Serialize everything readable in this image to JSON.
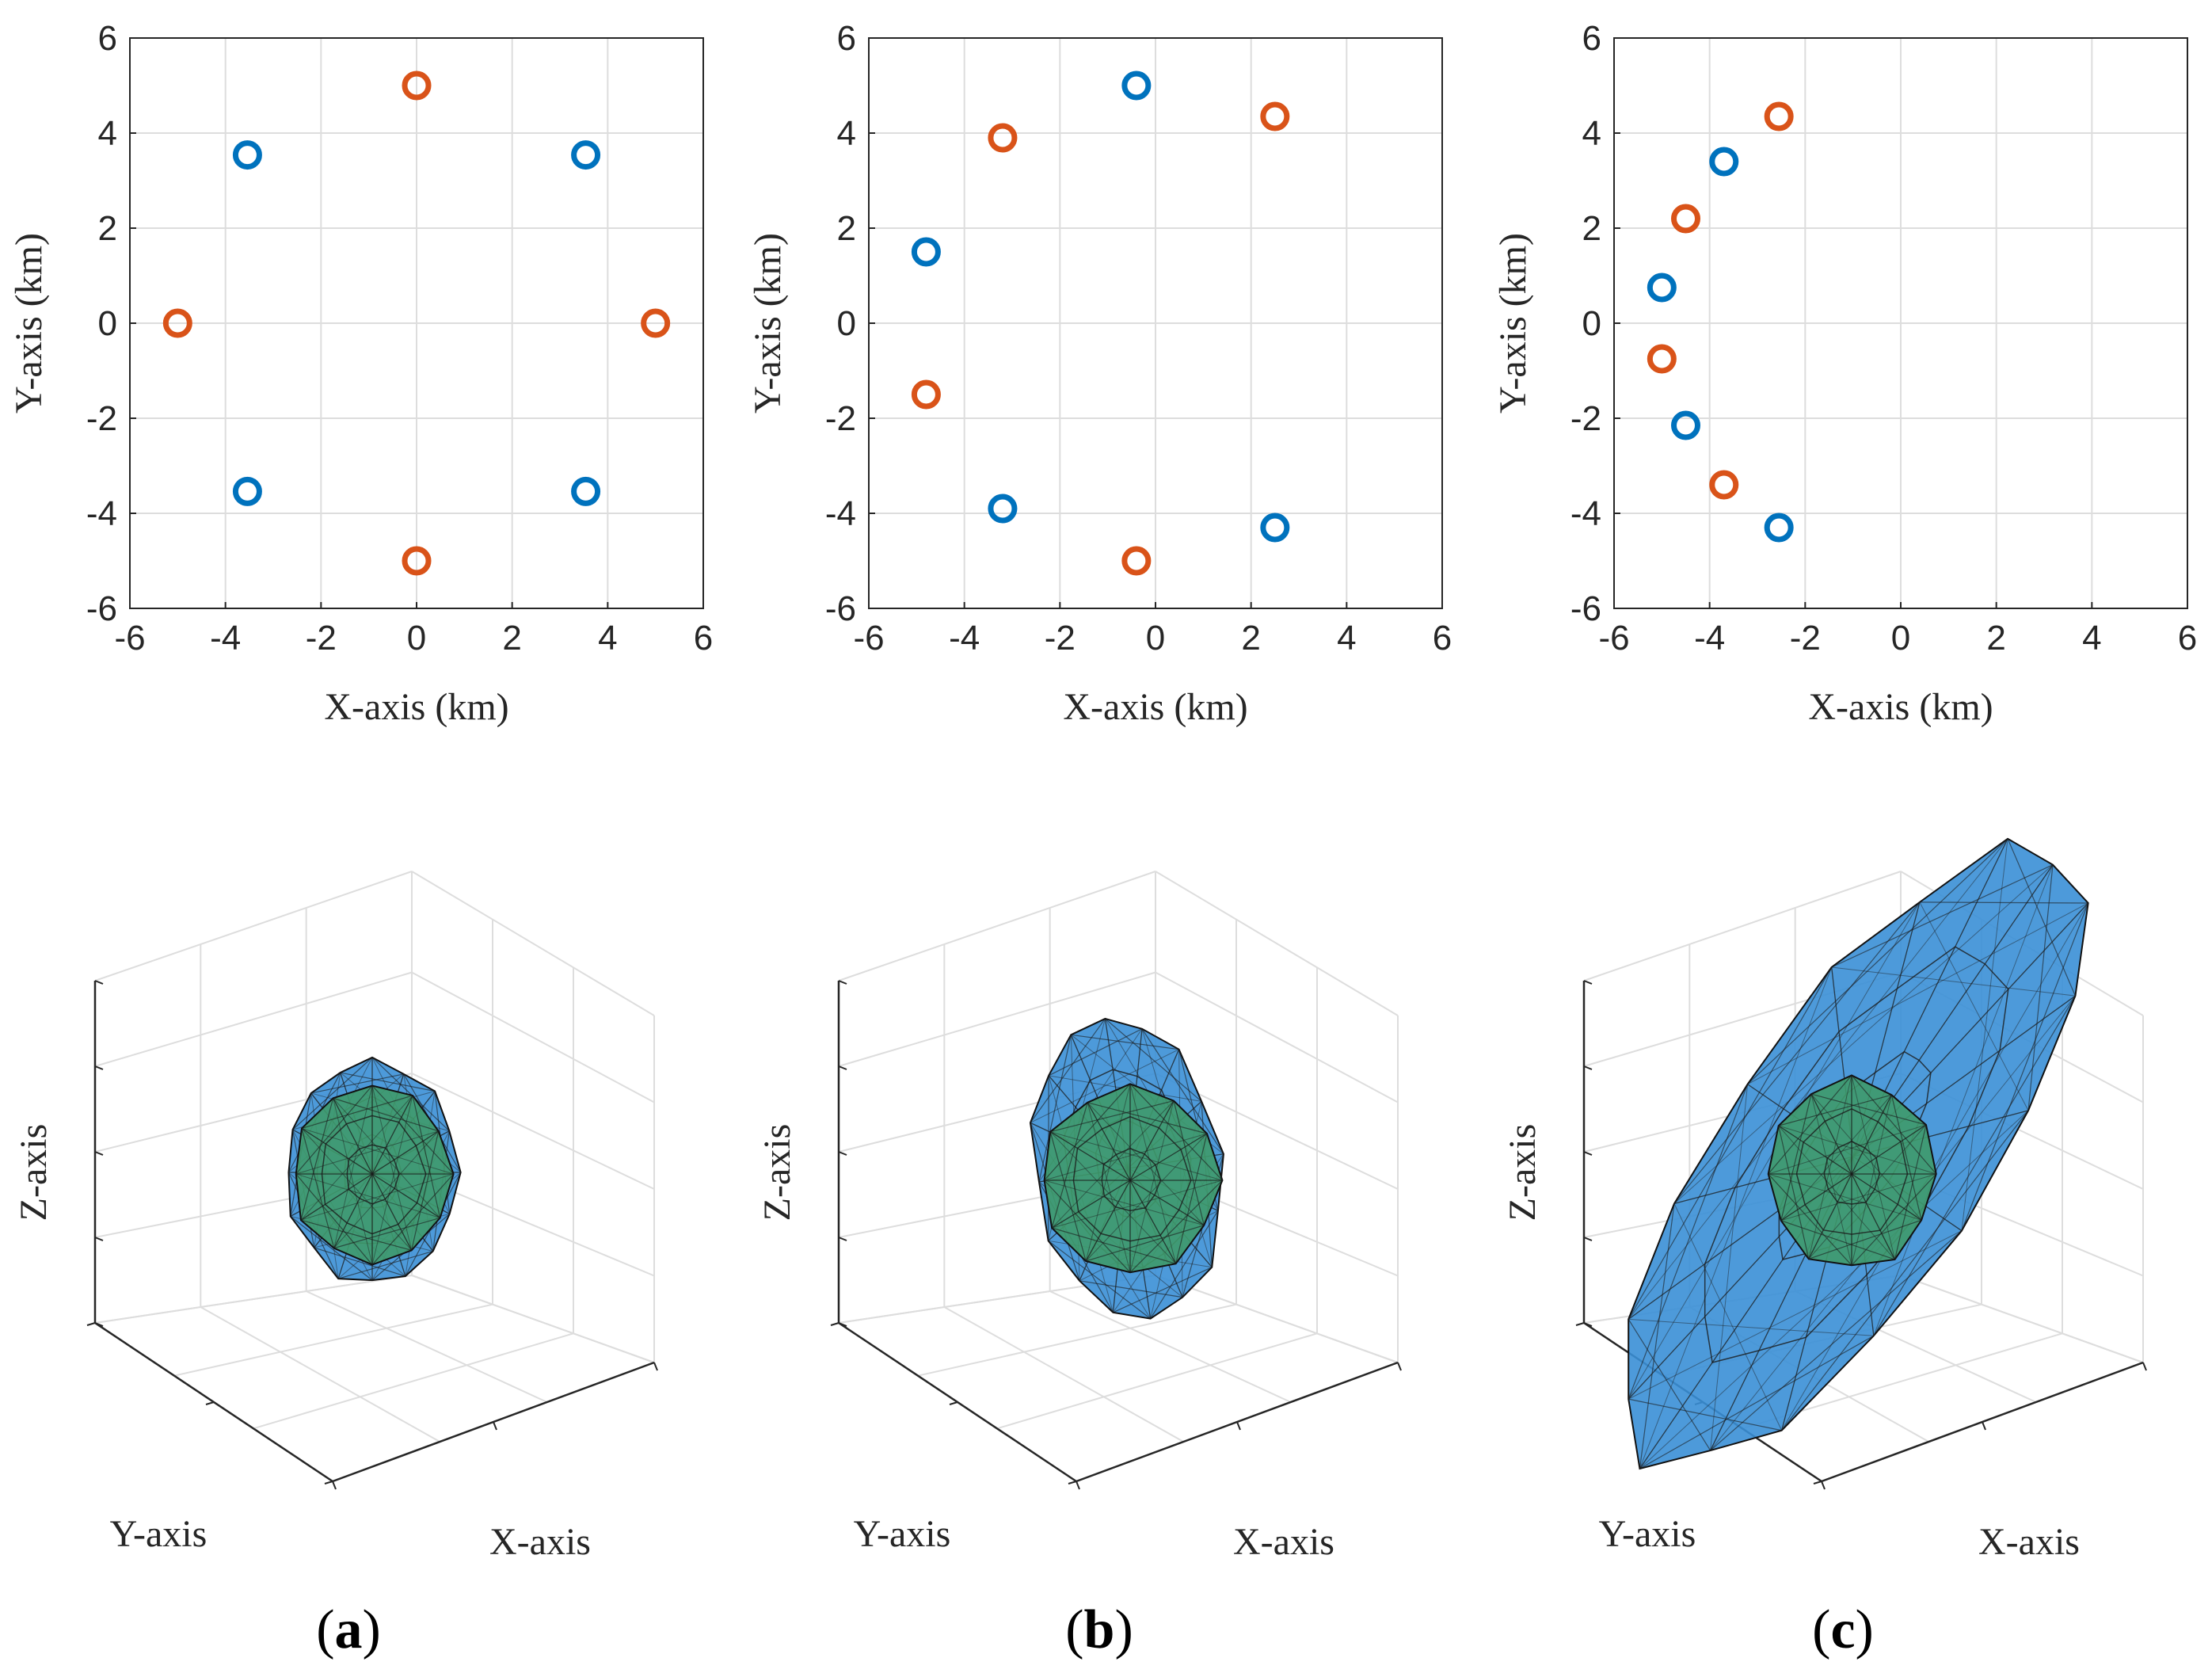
{
  "figure": {
    "panel_labels": [
      "a",
      "b",
      "c"
    ],
    "caption_open": "(",
    "caption_close": ")"
  },
  "colors": {
    "blue": "#0072BD",
    "orange": "#D95319",
    "mesh_blue": "#3A8FD6",
    "mesh_green": "#3F9A6A",
    "grid": "#DDDDDD",
    "axis": "#262626"
  },
  "chart_data": [
    {
      "type": "scatter",
      "panel": "a",
      "xlabel": "X-axis (km)",
      "ylabel": "Y-axis (km)",
      "xlim": [
        -6,
        6
      ],
      "ylim": [
        -6,
        6
      ],
      "xticks": [
        "-6",
        "-4",
        "-2",
        "0",
        "2",
        "4",
        "6"
      ],
      "yticks": [
        "-6",
        "-4",
        "-2",
        "0",
        "2",
        "4",
        "6"
      ],
      "grid": true,
      "series": [
        {
          "name": "blue",
          "color": "#0072BD",
          "points": [
            [
              -3.54,
              3.54
            ],
            [
              3.54,
              3.54
            ],
            [
              -3.54,
              -3.54
            ],
            [
              3.54,
              -3.54
            ]
          ]
        },
        {
          "name": "orange",
          "color": "#D95319",
          "points": [
            [
              0,
              5
            ],
            [
              -5,
              0
            ],
            [
              5,
              0
            ],
            [
              0,
              -5
            ]
          ]
        }
      ]
    },
    {
      "type": "scatter",
      "panel": "b",
      "xlabel": "X-axis (km)",
      "ylabel": "Y-axis (km)",
      "xlim": [
        -6,
        6
      ],
      "ylim": [
        -6,
        6
      ],
      "xticks": [
        "-6",
        "-4",
        "-2",
        "0",
        "2",
        "4",
        "6"
      ],
      "yticks": [
        "-6",
        "-4",
        "-2",
        "0",
        "2",
        "4",
        "6"
      ],
      "grid": true,
      "series": [
        {
          "name": "blue",
          "color": "#0072BD",
          "points": [
            [
              -0.4,
              5.0
            ],
            [
              -4.8,
              1.5
            ],
            [
              -3.2,
              -3.9
            ],
            [
              2.5,
              -4.3
            ]
          ]
        },
        {
          "name": "orange",
          "color": "#D95319",
          "points": [
            [
              -3.2,
              3.9
            ],
            [
              2.5,
              4.35
            ],
            [
              -4.8,
              -1.5
            ],
            [
              -0.4,
              -5.0
            ]
          ]
        }
      ]
    },
    {
      "type": "scatter",
      "panel": "c",
      "xlabel": "X-axis (km)",
      "ylabel": "Y-axis (km)",
      "xlim": [
        -6,
        6
      ],
      "ylim": [
        -6,
        6
      ],
      "xticks": [
        "-6",
        "-4",
        "-2",
        "0",
        "2",
        "4",
        "6"
      ],
      "yticks": [
        "-6",
        "-4",
        "-2",
        "0",
        "2",
        "4",
        "6"
      ],
      "grid": true,
      "series": [
        {
          "name": "blue",
          "color": "#0072BD",
          "points": [
            [
              -3.7,
              3.4
            ],
            [
              -5.0,
              0.75
            ],
            [
              -4.5,
              -2.15
            ],
            [
              -2.55,
              -4.3
            ]
          ]
        },
        {
          "name": "orange",
          "color": "#D95319",
          "points": [
            [
              -2.55,
              4.35
            ],
            [
              -4.5,
              2.2
            ],
            [
              -5.0,
              -0.75
            ],
            [
              -3.7,
              -3.4
            ]
          ]
        }
      ]
    },
    {
      "type": "mesh3d",
      "panel": "a",
      "xlabel": "X-axis",
      "ylabel": "Y-axis",
      "zlabel": "Z-axis",
      "surfaces": [
        {
          "name": "outer",
          "color": "#3A8FD6",
          "shape": "near-spherical"
        },
        {
          "name": "inner",
          "color": "#3F9A6A",
          "shape": "spherical"
        }
      ]
    },
    {
      "type": "mesh3d",
      "panel": "b",
      "xlabel": "X-axis",
      "ylabel": "Y-axis",
      "zlabel": "Z-axis",
      "surfaces": [
        {
          "name": "outer",
          "color": "#3A8FD6",
          "shape": "slightly elongated"
        },
        {
          "name": "inner",
          "color": "#3F9A6A",
          "shape": "spherical"
        }
      ]
    },
    {
      "type": "mesh3d",
      "panel": "c",
      "xlabel": "X-axis",
      "ylabel": "Y-axis",
      "zlabel": "Z-axis",
      "surfaces": [
        {
          "name": "outer",
          "color": "#3A8FD6",
          "shape": "strongly elongated"
        },
        {
          "name": "inner",
          "color": "#3F9A6A",
          "shape": "spherical"
        }
      ]
    }
  ]
}
